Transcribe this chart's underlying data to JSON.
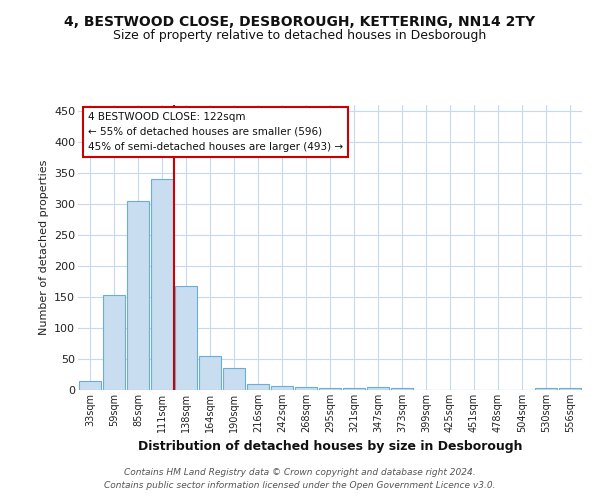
{
  "title1": "4, BESTWOOD CLOSE, DESBOROUGH, KETTERING, NN14 2TY",
  "title2": "Size of property relative to detached houses in Desborough",
  "xlabel": "Distribution of detached houses by size in Desborough",
  "ylabel": "Number of detached properties",
  "bar_labels": [
    "33sqm",
    "59sqm",
    "85sqm",
    "111sqm",
    "138sqm",
    "164sqm",
    "190sqm",
    "216sqm",
    "242sqm",
    "268sqm",
    "295sqm",
    "321sqm",
    "347sqm",
    "373sqm",
    "399sqm",
    "425sqm",
    "451sqm",
    "478sqm",
    "504sqm",
    "530sqm",
    "556sqm"
  ],
  "bar_values": [
    15,
    153,
    305,
    341,
    168,
    55,
    35,
    9,
    7,
    5,
    3,
    4,
    5,
    3,
    0,
    0,
    0,
    0,
    0,
    4,
    3
  ],
  "bar_color": "#c9ddf0",
  "bar_edgecolor": "#6aadd5",
  "vline_x": 3.5,
  "vline_color": "#cc0000",
  "annotation_title": "4 BESTWOOD CLOSE: 122sqm",
  "annotation_line2": "← 55% of detached houses are smaller (596)",
  "annotation_line3": "45% of semi-detached houses are larger (493) →",
  "annotation_edgecolor": "#cc0000",
  "footer_line1": "Contains HM Land Registry data © Crown copyright and database right 2024.",
  "footer_line2": "Contains public sector information licensed under the Open Government Licence v3.0.",
  "background_color": "#ffffff",
  "plot_background": "#ffffff",
  "grid_color": "#c8d8ee",
  "ylim": [
    0,
    460
  ],
  "yticks": [
    0,
    50,
    100,
    150,
    200,
    250,
    300,
    350,
    400,
    450
  ]
}
